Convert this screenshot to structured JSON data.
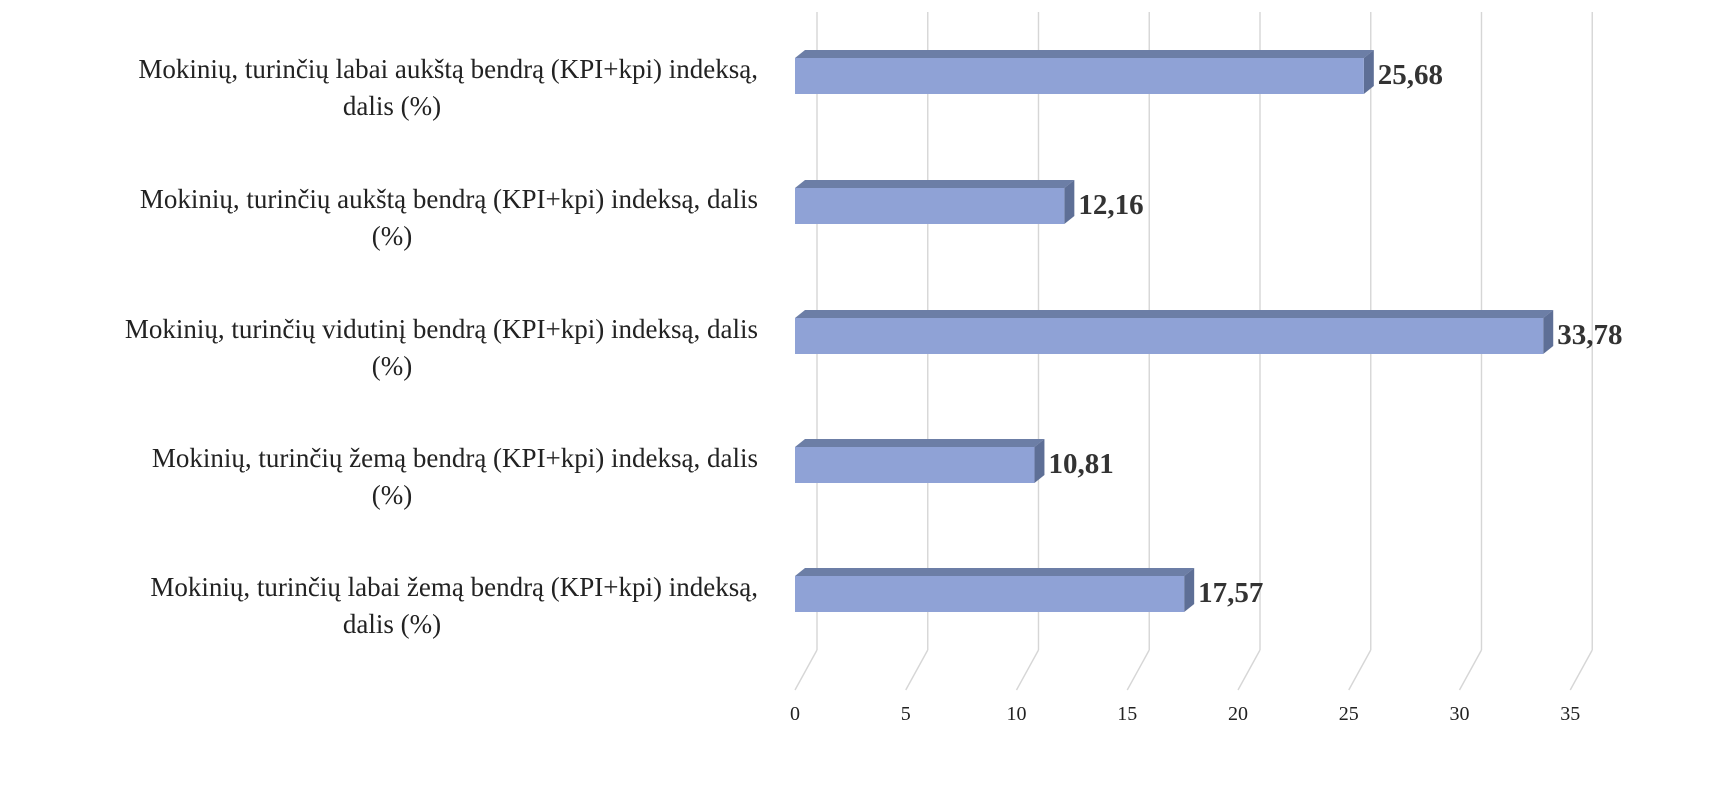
{
  "chart_data": {
    "type": "bar",
    "orientation": "horizontal",
    "style": "3d-clustered",
    "categories": [
      [
        "Mokinių, turinčių labai aukštą bendrą (KPI+kpi) indeksą,",
        "dalis (%)"
      ],
      [
        "Mokinių, turinčių aukštą bendrą (KPI+kpi) indeksą, dalis",
        "(%)"
      ],
      [
        "Mokinių, turinčių vidutinį bendrą (KPI+kpi) indeksą, dalis",
        "(%)"
      ],
      [
        "Mokinių, turinčių žemą bendrą (KPI+kpi) indeksą, dalis",
        "(%)"
      ],
      [
        "Mokinių, turinčių labai žemą bendrą (KPI+kpi) indeksą,",
        "dalis (%)"
      ]
    ],
    "values": [
      25.68,
      12.16,
      33.78,
      10.81,
      17.57
    ],
    "value_labels": [
      "25,68",
      "12,16",
      "33,78",
      "10,81",
      "17,57"
    ],
    "xlim": [
      0,
      35
    ],
    "ticks": [
      0,
      5,
      10,
      15,
      20,
      25,
      30,
      35
    ],
    "tick_labels": [
      "0",
      "5",
      "10",
      "15",
      "20",
      "25",
      "30",
      "35"
    ],
    "grid": true,
    "legend": "none",
    "colors": {
      "bar_front": "#8fa2d6",
      "bar_top": "#6c7ea6",
      "bar_side": "#5e6f96",
      "grid": "#d6d6d6"
    }
  }
}
